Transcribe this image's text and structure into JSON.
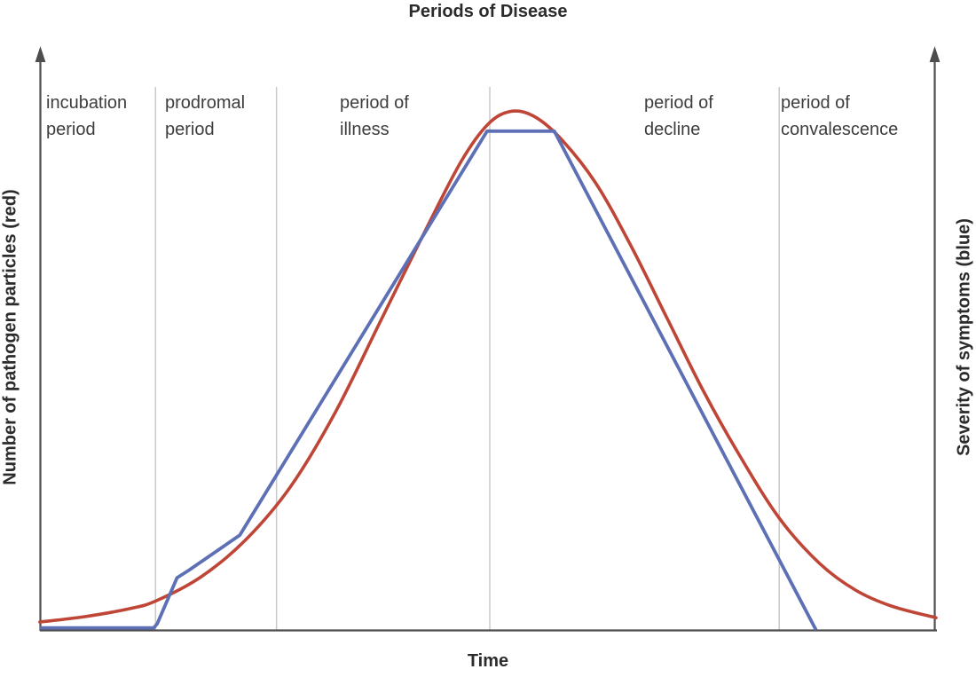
{
  "title": "Periods of Disease",
  "xlabel": "Time",
  "ylabel_left": "Number of pathogen particles (red)",
  "ylabel_right": "Severity of symptoms (blue)",
  "colors": {
    "axis": "#4d4d4d",
    "divider": "#c9c9c9",
    "pathogen_red": "#bf4636",
    "symptoms_blue": "#5d6fb5",
    "text": "#3d3d3d"
  },
  "periods": [
    {
      "line1": "incubation",
      "line2": "period"
    },
    {
      "line1": "prodromal",
      "line2": "period"
    },
    {
      "line1": "period of",
      "line2": "illness"
    },
    {
      "line1": "period of",
      "line2": "decline"
    },
    {
      "line1": "period of",
      "line2": "convalescence"
    }
  ],
  "chart_data": {
    "type": "line",
    "title": "Periods of Disease",
    "xlabel": "Time",
    "ylabel_left": "Number of pathogen particles (red)",
    "ylabel_right": "Severity of symptoms (blue)",
    "x_range": [
      0,
      100
    ],
    "y_range": [
      0,
      100
    ],
    "grid": false,
    "axes_arrows": true,
    "period_boundaries_x": [
      12.9,
      26.4,
      50.2,
      82.5
    ],
    "series": [
      {
        "name": "Number of pathogen particles",
        "color": "#bf4636",
        "style": "smooth",
        "points": [
          [
            0,
            1.5
          ],
          [
            5,
            2.5
          ],
          [
            10,
            4
          ],
          [
            13,
            5.5
          ],
          [
            18,
            10
          ],
          [
            23,
            17
          ],
          [
            28,
            27
          ],
          [
            33,
            41
          ],
          [
            38,
            58
          ],
          [
            43,
            75
          ],
          [
            47,
            88
          ],
          [
            50,
            95
          ],
          [
            52.5,
            97.4
          ],
          [
            55,
            96.6
          ],
          [
            58,
            92.5
          ],
          [
            62,
            84
          ],
          [
            66,
            72
          ],
          [
            70,
            58.5
          ],
          [
            74,
            45
          ],
          [
            78,
            33
          ],
          [
            82.5,
            21
          ],
          [
            87,
            12.5
          ],
          [
            91,
            7.5
          ],
          [
            95,
            4.5
          ],
          [
            100,
            2.3
          ]
        ]
      },
      {
        "name": "Severity of symptoms",
        "color": "#5d6fb5",
        "style": "linear",
        "points": [
          [
            0,
            0.4
          ],
          [
            12.7,
            0.4
          ],
          [
            13.1,
            1.2
          ],
          [
            15.3,
            9.8
          ],
          [
            16.6,
            11.2
          ],
          [
            22.3,
            17.8
          ],
          [
            49.9,
            93.7
          ],
          [
            57.4,
            93.7
          ],
          [
            86.6,
            0
          ]
        ]
      }
    ]
  }
}
